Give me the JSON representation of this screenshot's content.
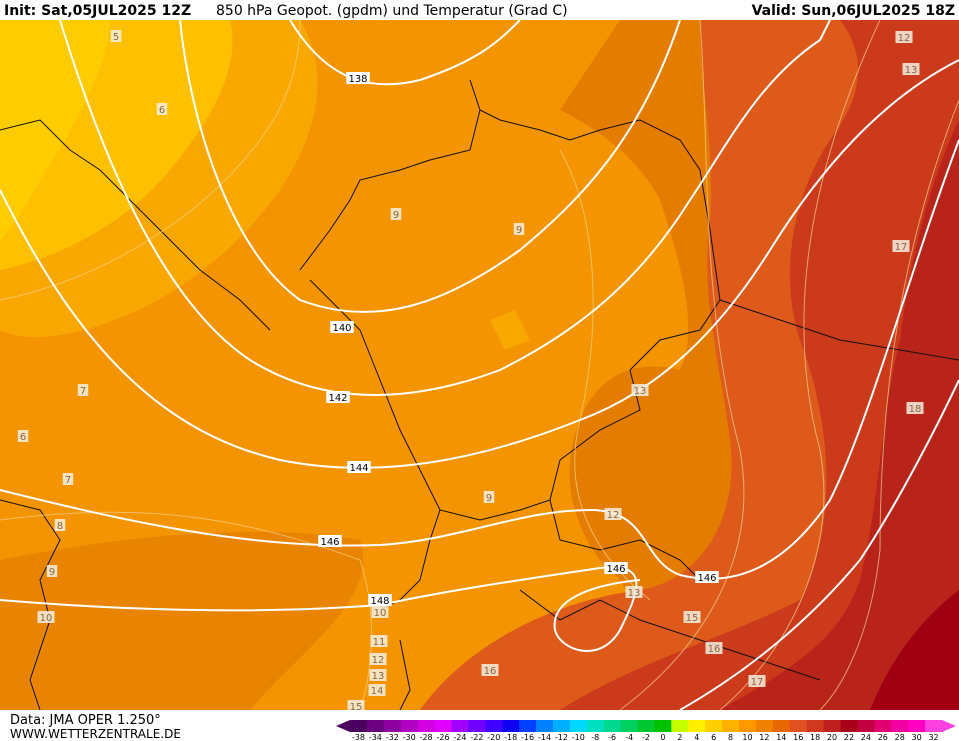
{
  "header": {
    "init": "Init: Sat,05JUL2025 12Z",
    "title": "850 hPa Geopot. (gpdm) und Temperatur (Grad C)",
    "valid": "Valid: Sun,06JUL2025 18Z"
  },
  "footer": {
    "source": "Data: JMA OPER 1.250°",
    "site": "WWW.WETTERZENTRALE.DE"
  },
  "map": {
    "geopotential_labels": [
      "138",
      "140",
      "142",
      "144",
      "146",
      "146",
      "146",
      "148"
    ],
    "temperature_labels": [
      "5",
      "6",
      "9",
      "9",
      "7",
      "6",
      "7",
      "8",
      "9",
      "10",
      "10",
      "11",
      "12",
      "13",
      "14",
      "15",
      "16",
      "17",
      "18",
      "17",
      "12",
      "13",
      "13",
      "12",
      "9",
      "13",
      "15",
      "16"
    ]
  },
  "colorbar": {
    "labels": [
      -38,
      -34,
      -32,
      -30,
      -28,
      -26,
      -24,
      -22,
      -20,
      -18,
      -16,
      -14,
      -12,
      -10,
      -8,
      -6,
      -4,
      -2,
      0,
      2,
      4,
      6,
      8,
      10,
      12,
      14,
      16,
      18,
      20,
      22,
      24,
      26,
      28,
      30,
      32
    ],
    "colors": [
      "#4b0060",
      "#6a0080",
      "#8c00a0",
      "#b000c0",
      "#d000e0",
      "#e000ff",
      "#a000ff",
      "#7000ff",
      "#4000ff",
      "#1000f0",
      "#0040ff",
      "#0080ff",
      "#00b0ff",
      "#00d8ff",
      "#00e0c0",
      "#00d890",
      "#00d060",
      "#00c830",
      "#00c000",
      "#c8ff00",
      "#fff000",
      "#ffd000",
      "#ffb000",
      "#ff9800",
      "#f08000",
      "#e86800",
      "#e05020",
      "#d03820",
      "#c02020",
      "#a80018",
      "#c00040",
      "#e00070",
      "#f000a0",
      "#ff00c0",
      "#ff40e0"
    ]
  }
}
